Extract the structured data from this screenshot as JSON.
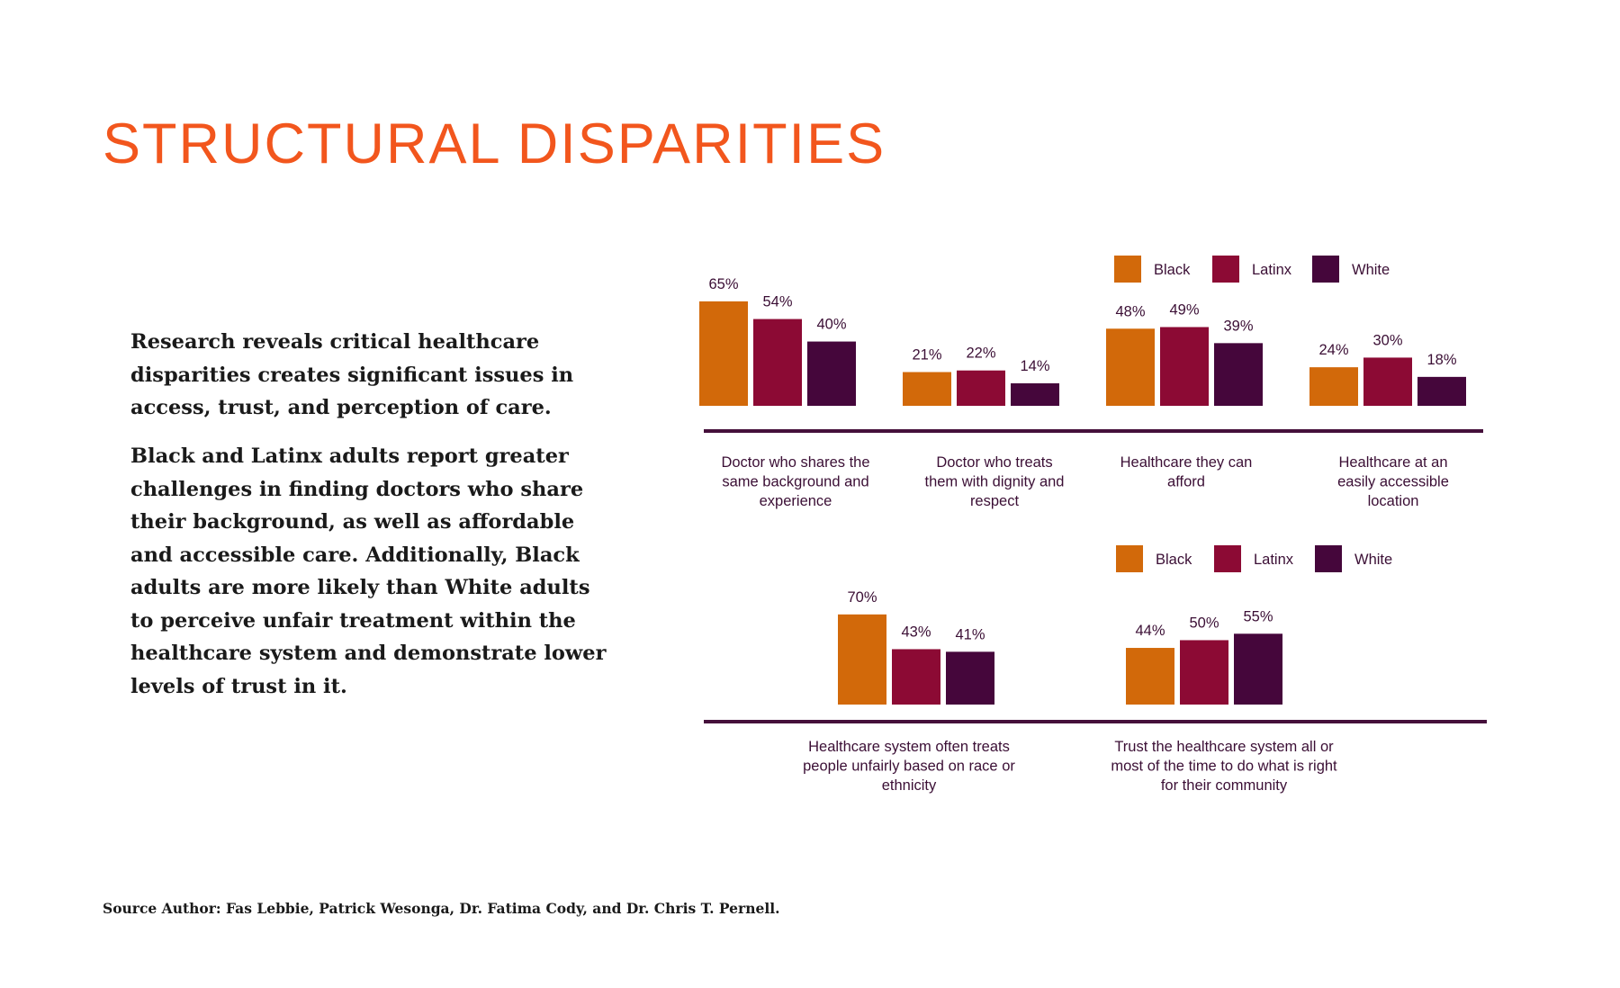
{
  "page": {
    "title": "STRUCTURAL DISPARITIES",
    "paragraphs": [
      "Research reveals critical healthcare disparities creates significant issues in access, trust, and perception of care.",
      "Black and Latinx adults report greater challenges in finding doctors who share their background, as well as affordable and accessible care. Additionally, Black adults are more likely than White adults to perceive unfair treatment within the healthcare system and demonstrate lower levels of trust in it."
    ],
    "source": "Source Author: Fas Lebbie, Patrick Wesonga, Dr. Fatima Cody, and Dr. Chris T. Pernell."
  },
  "colors": {
    "title": "#f2561d",
    "axis": "#45103b",
    "label_text": "#3b0f35",
    "black_series": "#d2690a",
    "latinx_series": "#8c0a34",
    "white_series": "#45063b"
  },
  "chart_data": [
    {
      "type": "bar",
      "title": "",
      "xlabel": "",
      "ylabel": "",
      "ylim": [
        0,
        100
      ],
      "unit": "%",
      "legend": "top-right",
      "categories": [
        [
          "Doctor who shares the",
          "same background and",
          "experience"
        ],
        [
          "Doctor who treats",
          "them with dignity and",
          "respect"
        ],
        [
          "Healthcare they can",
          "afford"
        ],
        [
          "Healthcare at an",
          "easily accessible",
          "location"
        ]
      ],
      "series": [
        {
          "name": "Black",
          "values": [
            65,
            21,
            48,
            24
          ]
        },
        {
          "name": "Latinx",
          "values": [
            54,
            22,
            49,
            30
          ]
        },
        {
          "name": "White",
          "values": [
            40,
            14,
            39,
            18
          ]
        }
      ]
    },
    {
      "type": "bar",
      "title": "",
      "xlabel": "",
      "ylabel": "",
      "ylim": [
        0,
        100
      ],
      "unit": "%",
      "legend": "top-right",
      "categories": [
        [
          "Healthcare system often treats",
          "people unfairly based on race or",
          "ethnicity"
        ],
        [
          "Trust the healthcare system all or",
          "most of the time to do what is right",
          "for their community"
        ]
      ],
      "series": [
        {
          "name": "Black",
          "values": [
            70,
            44
          ]
        },
        {
          "name": "Latinx",
          "values": [
            43,
            50
          ]
        },
        {
          "name": "White",
          "values": [
            41,
            55
          ]
        }
      ]
    }
  ]
}
